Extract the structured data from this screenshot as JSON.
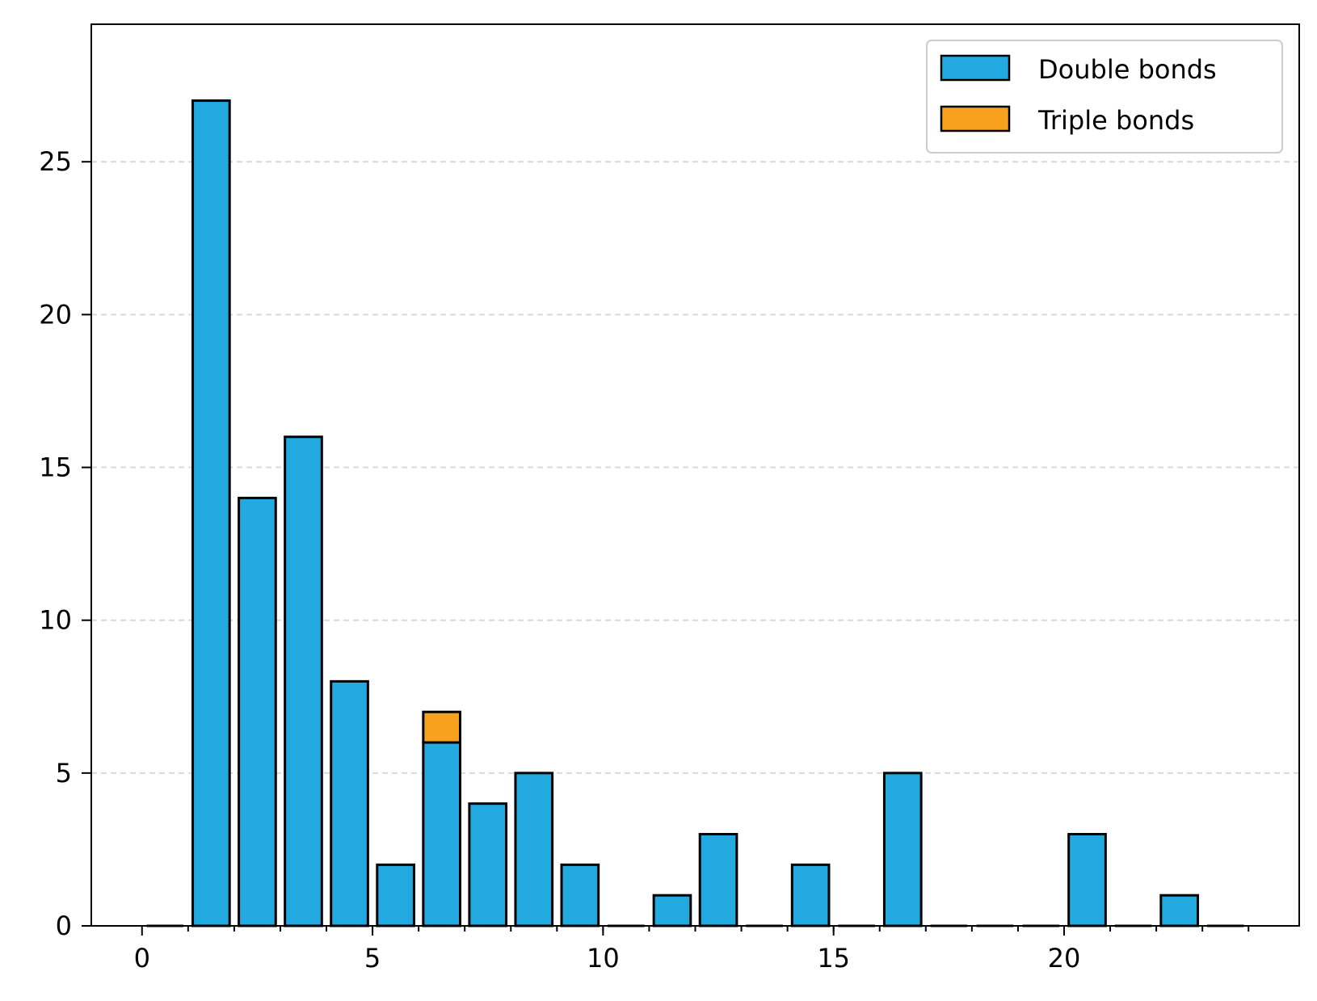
{
  "chart_data": {
    "type": "bar",
    "stacked": true,
    "bin_edges": [
      0,
      1,
      2,
      3,
      4,
      5,
      6,
      7,
      8,
      9,
      10,
      11,
      12,
      13,
      14,
      15,
      16,
      17,
      18,
      19,
      20,
      21,
      22,
      23,
      24
    ],
    "series": [
      {
        "name": "Double bonds",
        "color": "#22a9e0",
        "values": [
          0,
          27,
          14,
          16,
          8,
          2,
          6,
          4,
          5,
          2,
          0,
          1,
          3,
          0,
          2,
          0,
          5,
          0,
          0,
          0,
          3,
          0,
          1,
          0
        ]
      },
      {
        "name": "Triple bonds",
        "color": "#f7a11f",
        "values": [
          0,
          0,
          0,
          0,
          0,
          0,
          1,
          0,
          0,
          0,
          0,
          0,
          0,
          0,
          0,
          0,
          0,
          0,
          0,
          0,
          0,
          0,
          0,
          0
        ]
      }
    ],
    "xlim": [
      -1.1,
      25.1
    ],
    "ylim": [
      0,
      29.5
    ],
    "xticks": [
      "0",
      "5",
      "10",
      "15",
      "20"
    ],
    "xtick_values": [
      0,
      5,
      10,
      15,
      20
    ],
    "yticks": [
      "0",
      "5",
      "10",
      "15",
      "20",
      "25"
    ],
    "ytick_values": [
      0,
      5,
      10,
      15,
      20,
      25
    ],
    "grid": "y-dashed",
    "legend_position": "top-right",
    "title": "",
    "xlabel": "",
    "ylabel": ""
  }
}
